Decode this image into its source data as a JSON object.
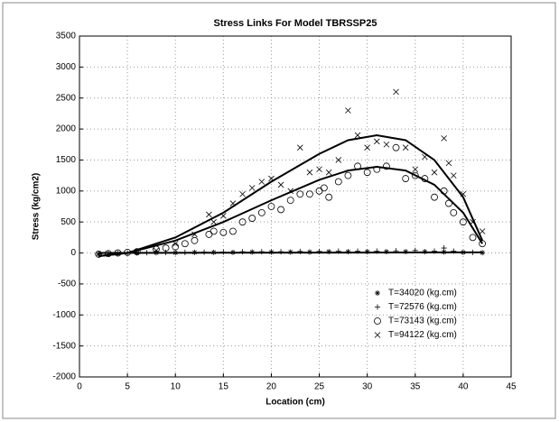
{
  "chart_data": {
    "type": "scatter",
    "title": "Stress Links For Model TBRSSP25",
    "x_label": "Location (cm)",
    "y_label": "Stress (kg/cm2)",
    "xlim": [
      0,
      45
    ],
    "ylim": [
      -2000,
      3500
    ],
    "xticks": [
      0,
      5,
      10,
      15,
      20,
      25,
      30,
      35,
      40,
      45
    ],
    "yticks": [
      -2000,
      -1500,
      -1000,
      -500,
      0,
      500,
      1000,
      1500,
      2000,
      2500,
      3000,
      3500
    ],
    "grid": true,
    "legend": "lower right",
    "series": [
      {
        "name": "T=34020 (kg.cm)",
        "marker": "star",
        "color": "#000000",
        "x": [
          2,
          4,
          6,
          8,
          10,
          12,
          14,
          16,
          18,
          20,
          22,
          24,
          26,
          28,
          30,
          32,
          34,
          36,
          38,
          40,
          42
        ],
        "values": [
          -20,
          -10,
          0,
          5,
          5,
          10,
          10,
          10,
          15,
          15,
          15,
          15,
          20,
          20,
          20,
          20,
          20,
          20,
          15,
          10,
          5
        ]
      },
      {
        "name": "T=72576 (kg.cm)",
        "marker": "plus",
        "color": "#000000",
        "x": [
          3,
          5,
          7,
          9,
          11,
          13,
          15,
          17,
          19,
          21,
          23,
          25,
          27,
          29,
          31,
          33,
          35,
          37,
          38,
          39,
          41
        ],
        "values": [
          -10,
          0,
          5,
          10,
          10,
          15,
          15,
          20,
          20,
          20,
          25,
          25,
          30,
          30,
          30,
          35,
          40,
          30,
          80,
          30,
          10
        ]
      },
      {
        "name": "T=73143 (kg.cm)",
        "marker": "circle",
        "color": "#000000",
        "x": [
          2,
          3,
          4,
          5,
          6,
          8,
          9,
          10,
          11,
          12,
          13.5,
          14,
          15,
          16,
          17,
          18,
          19,
          20,
          21,
          22,
          23,
          24,
          25,
          25.5,
          26,
          27,
          28,
          29,
          30,
          31,
          32,
          33,
          34,
          35,
          36,
          37,
          38,
          38.5,
          39,
          40,
          41,
          42
        ],
        "values": [
          -20,
          -10,
          0,
          10,
          20,
          60,
          80,
          100,
          150,
          200,
          300,
          350,
          330,
          350,
          500,
          560,
          650,
          750,
          700,
          850,
          950,
          950,
          1000,
          1050,
          900,
          1150,
          1250,
          1400,
          1300,
          1350,
          1400,
          1700,
          1200,
          1250,
          1200,
          900,
          1000,
          800,
          650,
          500,
          250,
          150
        ]
      },
      {
        "name": "T=94122 (kg.cm)",
        "marker": "cross",
        "color": "#000000",
        "x": [
          8,
          10,
          12,
          13.5,
          14,
          15,
          16,
          17,
          18,
          19,
          20,
          21,
          22,
          23,
          24,
          25,
          26,
          27,
          28,
          29,
          30,
          31,
          32,
          33,
          34,
          35,
          36,
          37,
          38,
          38.5,
          39,
          40,
          41,
          42
        ],
        "values": [
          40,
          150,
          300,
          620,
          500,
          600,
          800,
          950,
          1050,
          1150,
          1200,
          1100,
          1000,
          1700,
          1300,
          1350,
          1300,
          1500,
          2300,
          1900,
          1700,
          1800,
          1750,
          2600,
          1700,
          1350,
          1550,
          1300,
          1850,
          1450,
          1250,
          950,
          500,
          350
        ]
      }
    ],
    "fit_curves": [
      {
        "x": [
          2,
          5,
          10,
          15,
          20,
          25,
          28,
          31,
          34,
          37,
          40,
          42
        ],
        "values": [
          -50,
          0,
          250,
          650,
          1150,
          1600,
          1820,
          1900,
          1820,
          1500,
          900,
          200
        ]
      },
      {
        "x": [
          2,
          5,
          10,
          15,
          20,
          25,
          28,
          31,
          34,
          37,
          40,
          42
        ],
        "values": [
          -50,
          0,
          200,
          500,
          850,
          1180,
          1330,
          1390,
          1330,
          1100,
          650,
          150
        ]
      },
      {
        "x": [
          2,
          42
        ],
        "values": [
          0,
          10
        ]
      }
    ]
  }
}
